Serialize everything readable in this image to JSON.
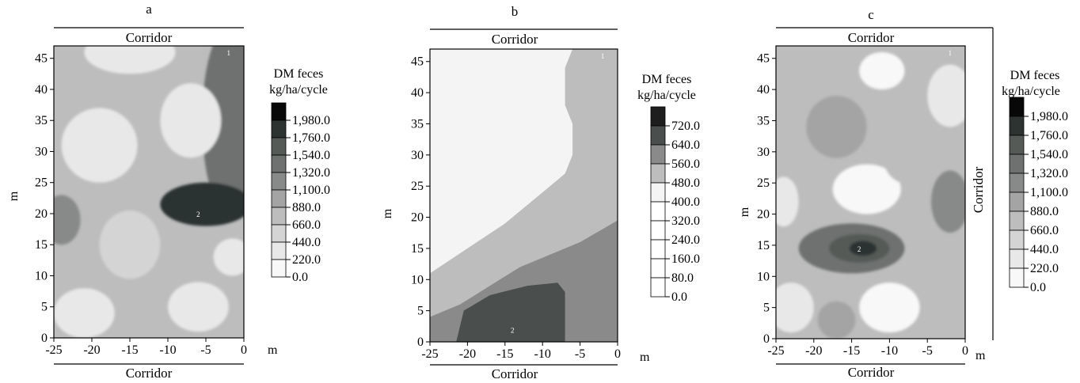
{
  "panels": [
    {
      "letter": "a",
      "corridor_top": "Corridor",
      "corridor_bottom": "Corridor",
      "corridor_right": "",
      "ylabel": "m",
      "xunit": "m",
      "legend_title": [
        "DM feces",
        "kg/ha/cycle"
      ],
      "chart_data": {
        "type": "heatmap",
        "xlim": [
          -25,
          0
        ],
        "ylim": [
          0,
          47
        ],
        "xticks": [
          -25,
          -20,
          -15,
          -10,
          -5,
          0
        ],
        "yticks": [
          0,
          5,
          10,
          15,
          20,
          25,
          30,
          35,
          40,
          45
        ],
        "levels": [
          "1,980.0",
          "1,760.0",
          "1,540.0",
          "1,320.0",
          "1,100.0",
          "880.0",
          "660.0",
          "440.0",
          "220.0",
          "0.0"
        ],
        "level_colors": [
          "#080808",
          "#2c3330",
          "#555a57",
          "#6e716f",
          "#888a89",
          "#a4a4a4",
          "#bdbdbd",
          "#d4d4d4",
          "#e8e8e8",
          "#f8f8f8"
        ],
        "background": "#bdbdbd",
        "markers": [
          {
            "label": "1",
            "x": -2,
            "y": 46
          },
          {
            "label": "2",
            "x": -6,
            "y": 20
          }
        ],
        "features": [
          {
            "kind": "blob",
            "x": -2,
            "y": 35,
            "rx": 3.5,
            "ry": 15,
            "level": 3
          },
          {
            "kind": "blob",
            "x": -5,
            "y": 21.5,
            "rx": 6,
            "ry": 3.5,
            "level": 1
          },
          {
            "kind": "blob",
            "x": -19,
            "y": 31,
            "rx": 5,
            "ry": 6,
            "level": 8
          },
          {
            "kind": "blob",
            "x": -7,
            "y": 35,
            "rx": 4,
            "ry": 6,
            "level": 8
          },
          {
            "kind": "blob",
            "x": -15,
            "y": 46,
            "rx": 6,
            "ry": 3.5,
            "level": 8
          },
          {
            "kind": "blob",
            "x": -15,
            "y": 15,
            "rx": 4,
            "ry": 5.5,
            "level": 7
          },
          {
            "kind": "blob",
            "x": -21,
            "y": 4,
            "rx": 4,
            "ry": 4,
            "level": 8
          },
          {
            "kind": "blob",
            "x": -6,
            "y": 5,
            "rx": 4,
            "ry": 4,
            "level": 8
          },
          {
            "kind": "blob",
            "x": -1.5,
            "y": 13,
            "rx": 2.5,
            "ry": 3,
            "level": 8
          },
          {
            "kind": "blob",
            "x": -24,
            "y": 19,
            "rx": 2.5,
            "ry": 4,
            "level": 4
          }
        ]
      }
    },
    {
      "letter": "b",
      "corridor_top": "Corridor",
      "corridor_bottom": "Corridor",
      "corridor_right": "",
      "ylabel": "m",
      "xunit": "m",
      "legend_title": [
        "DM feces",
        "kg/ha/cycle"
      ],
      "chart_data": {
        "type": "heatmap",
        "xlim": [
          -25,
          0
        ],
        "ylim": [
          0,
          47
        ],
        "xticks": [
          -25,
          -20,
          -15,
          -10,
          -5,
          0
        ],
        "yticks": [
          0,
          5,
          10,
          15,
          20,
          25,
          30,
          35,
          40,
          45
        ],
        "levels": [
          "720.0",
          "640.0",
          "560.0",
          "480.0",
          "400.0",
          "320.0",
          "240.0",
          "160.0",
          "80.0",
          "0.0"
        ],
        "level_colors": [
          "#1e1e1e",
          "#4a4e4c",
          "#8a8a8a",
          "#bdbdbd",
          "#f4f4f4",
          "#ffffff",
          "#ffffff",
          "#ffffff",
          "#ffffff",
          "#ffffff"
        ],
        "background": "#bdbdbd",
        "markers": [
          {
            "label": "1",
            "x": -2,
            "y": 46
          },
          {
            "label": "2",
            "x": -14,
            "y": 2
          }
        ],
        "regions": [
          {
            "level": 4,
            "points": [
              [
                -25,
                47
              ],
              [
                -6,
                47
              ],
              [
                -7,
                44
              ],
              [
                -7,
                38
              ],
              [
                -6,
                35
              ],
              [
                -6,
                30
              ],
              [
                -7,
                27
              ],
              [
                -10,
                24
              ],
              [
                -15,
                19
              ],
              [
                -20,
                15
              ],
              [
                -25,
                11
              ]
            ]
          },
          {
            "level": 2,
            "points": [
              [
                -25,
                4
              ],
              [
                -21,
                6
              ],
              [
                -17,
                9
              ],
              [
                -13,
                12
              ],
              [
                -9,
                14
              ],
              [
                -5,
                16
              ],
              [
                0,
                19.5
              ],
              [
                0,
                0
              ],
              [
                -25,
                0
              ]
            ]
          },
          {
            "level": 1,
            "points": [
              [
                -21.5,
                0
              ],
              [
                -20.5,
                5
              ],
              [
                -17,
                7.5
              ],
              [
                -12,
                9
              ],
              [
                -8,
                9.5
              ],
              [
                -7,
                8
              ],
              [
                -7,
                0
              ]
            ]
          }
        ]
      }
    },
    {
      "letter": "c",
      "corridor_top": "Corridor",
      "corridor_bottom": "Corridor",
      "corridor_right": "Corridor",
      "ylabel": "m",
      "xunit": "m",
      "legend_title": [
        "DM feces",
        "kg/ha/cycle"
      ],
      "chart_data": {
        "type": "heatmap",
        "xlim": [
          -25,
          0
        ],
        "ylim": [
          0,
          47
        ],
        "xticks": [
          -25,
          -20,
          -15,
          -10,
          -5,
          0
        ],
        "yticks": [
          0,
          5,
          10,
          15,
          20,
          25,
          30,
          35,
          40,
          45
        ],
        "levels": [
          "1,980.0",
          "1,760.0",
          "1,540.0",
          "1,320.0",
          "1,100.0",
          "880.0",
          "660.0",
          "440.0",
          "220.0",
          "0.0"
        ],
        "level_colors": [
          "#080808",
          "#2c3330",
          "#555a57",
          "#6e716f",
          "#888a89",
          "#a4a4a4",
          "#bdbdbd",
          "#d4d4d4",
          "#e8e8e8",
          "#f8f8f8"
        ],
        "background": "#bdbdbd",
        "markers": [
          {
            "label": "1",
            "x": -2,
            "y": 46
          },
          {
            "label": "2",
            "x": -14,
            "y": 14.5
          }
        ],
        "features": [
          {
            "kind": "blob",
            "x": -15,
            "y": 14.5,
            "rx": 7,
            "ry": 4,
            "level": 3
          },
          {
            "kind": "blob",
            "x": -14,
            "y": 14.5,
            "rx": 4,
            "ry": 2.3,
            "level": 2
          },
          {
            "kind": "blob",
            "x": -13.5,
            "y": 14.5,
            "rx": 1.8,
            "ry": 1.2,
            "level": 1
          },
          {
            "kind": "blob",
            "x": -13,
            "y": 24,
            "rx": 4.5,
            "ry": 4,
            "level": 9
          },
          {
            "kind": "blob",
            "x": -11,
            "y": 43,
            "rx": 3,
            "ry": 3,
            "level": 9
          },
          {
            "kind": "blob",
            "x": -2,
            "y": 39,
            "rx": 3,
            "ry": 5,
            "level": 8
          },
          {
            "kind": "blob",
            "x": -24,
            "y": 22,
            "rx": 2,
            "ry": 4,
            "level": 8
          },
          {
            "kind": "blob",
            "x": -10,
            "y": 5,
            "rx": 4,
            "ry": 4,
            "level": 9
          },
          {
            "kind": "blob",
            "x": -23,
            "y": 5,
            "rx": 3,
            "ry": 4,
            "level": 8
          },
          {
            "kind": "blob",
            "x": -17,
            "y": 34,
            "rx": 4,
            "ry": 5,
            "level": 5
          },
          {
            "kind": "blob",
            "x": -2,
            "y": 22,
            "rx": 2.5,
            "ry": 5,
            "level": 4
          },
          {
            "kind": "blob",
            "x": -17,
            "y": 3,
            "rx": 2.5,
            "ry": 3,
            "level": 5
          },
          {
            "kind": "blob",
            "x": -8,
            "y": 30,
            "rx": 3,
            "ry": 5,
            "level": 6
          }
        ]
      }
    }
  ]
}
